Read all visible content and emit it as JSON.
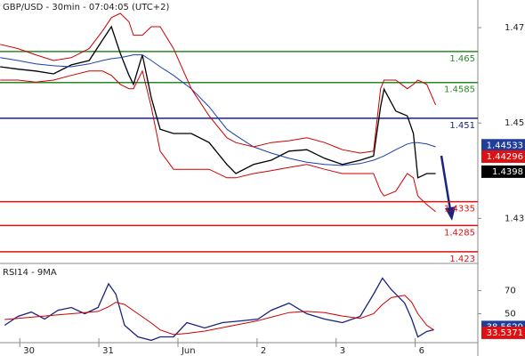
{
  "chart_data": [
    {
      "type": "line",
      "title": "GBP/USD - 30min - 07:04:05 (UTC+2)",
      "x": [
        -11.9,
        -1.1,
        9.7,
        20.5,
        31.3,
        42.1,
        50.2,
        55.6,
        61.0,
        66.3,
        69.0,
        74.4,
        79.8,
        85.2,
        93.3,
        104.1,
        114.9,
        125.7,
        131.1,
        141.9,
        152.6,
        163.4,
        174.2,
        185.0,
        195.8,
        206.6,
        214.7,
        219.0,
        221.1,
        228.2,
        235.2,
        238.9,
        241.6,
        247.0,
        252.4
      ],
      "series": [
        {
          "color": "#000000",
          "values": [
            1.4618,
            1.4613,
            1.4609,
            1.4603,
            1.4622,
            1.4631,
            1.4674,
            1.4702,
            1.4646,
            1.46,
            1.4581,
            1.4643,
            1.4553,
            1.4487,
            1.4478,
            1.4478,
            1.4459,
            1.4413,
            1.4394,
            1.4413,
            1.4422,
            1.4441,
            1.4444,
            1.4426,
            1.4413,
            1.4422,
            1.4431,
            1.4534,
            1.4571,
            1.4525,
            1.4515,
            1.4478,
            1.4385,
            1.4394,
            1.4394
          ]
        },
        {
          "color": "#1a3fa8",
          "values": [
            1.4637,
            1.4631,
            1.4624,
            1.462,
            1.4618,
            1.4624,
            1.4631,
            1.4635,
            1.4637,
            1.4641,
            1.4643,
            1.4643,
            1.4631,
            1.4618,
            1.46,
            1.4572,
            1.4534,
            1.4487,
            1.4474,
            1.445,
            1.4437,
            1.4426,
            1.4418,
            1.4413,
            1.4411,
            1.4415,
            1.4422,
            1.4428,
            1.4431,
            1.4444,
            1.4456,
            1.4459,
            1.4459,
            1.4456,
            1.445
          ]
        },
        {
          "color": "#cc0000",
          "values": [
            1.4665,
            1.4656,
            1.4643,
            1.4631,
            1.4637,
            1.4656,
            1.4693,
            1.4721,
            1.473,
            1.4712,
            1.4684,
            1.4684,
            1.4702,
            1.4702,
            1.4656,
            1.4572,
            1.4515,
            1.4469,
            1.4459,
            1.445,
            1.4459,
            1.4463,
            1.4469,
            1.4459,
            1.4444,
            1.4437,
            1.4441,
            1.4572,
            1.459,
            1.459,
            1.4572,
            1.4581,
            1.459,
            1.4581,
            1.4538
          ]
        },
        {
          "color": "#cc0000",
          "values": [
            1.459,
            1.459,
            1.4586,
            1.459,
            1.46,
            1.4609,
            1.4609,
            1.46,
            1.4581,
            1.4572,
            1.4572,
            1.4609,
            1.4534,
            1.4441,
            1.4403,
            1.4403,
            1.4403,
            1.4385,
            1.4385,
            1.4394,
            1.44,
            1.4407,
            1.4413,
            1.4403,
            1.4394,
            1.4394,
            1.4394,
            1.4357,
            1.4347,
            1.4357,
            1.4394,
            1.4385,
            1.4347,
            1.4329,
            1.4314
          ]
        }
      ],
      "levels": [
        {
          "value": 1.465,
          "color": "#2a8a2a"
        },
        {
          "value": 1.4585,
          "color": "#2a8a2a"
        },
        {
          "value": 1.451,
          "color": "#1a237e"
        },
        {
          "value": 1.4335,
          "color": "#dd1111"
        },
        {
          "value": 1.4285,
          "color": "#dd1111"
        },
        {
          "value": 1.423,
          "color": "#dd1111"
        }
      ],
      "tags": [
        {
          "value": 1.44533,
          "color": "#1f3d99"
        },
        {
          "value": 1.44296,
          "color": "#dd1111"
        },
        {
          "value": 1.4398,
          "color": "#000000"
        }
      ],
      "xlim": [
        -12,
        278
      ],
      "xticks": [
        {
          "value": 0,
          "label": "30"
        },
        {
          "value": 48,
          "label": "31"
        },
        {
          "value": 96,
          "label": "Jun"
        },
        {
          "value": 144,
          "label": "2"
        },
        {
          "value": 192,
          "label": "3"
        },
        {
          "value": 240,
          "label": "6"
        }
      ],
      "ylim": [
        1.4213,
        1.4758
      ],
      "yticks": [
        1.43,
        1.45,
        1.47
      ]
    },
    {
      "type": "line",
      "title": "RSI14 - 9MA",
      "x": [
        -9.2,
        -1.1,
        7.0,
        15.1,
        23.2,
        31.3,
        39.4,
        47.5,
        53.9,
        58.3,
        63.6,
        71.7,
        79.8,
        85.2,
        93.3,
        101.4,
        112.2,
        123.0,
        133.8,
        144.6,
        152.6,
        163.4,
        174.2,
        185.0,
        195.8,
        206.6,
        214.7,
        220.1,
        225.5,
        233.6,
        237.9,
        241.6,
        247.0,
        251.3
      ],
      "series": [
        {
          "color": "#1a237e",
          "values": [
            40,
            47.7,
            51.5,
            45.4,
            53,
            55.4,
            50,
            55.4,
            76,
            67,
            40,
            30,
            27,
            30,
            30,
            42.3,
            37.7,
            42.3,
            43.8,
            45.4,
            53,
            59.2,
            50,
            45.4,
            42.3,
            47.7,
            67,
            80.8,
            70.8,
            59.2,
            45.4,
            30,
            34.6,
            36.2
          ]
        },
        {
          "color": "#cc0000",
          "values": [
            45,
            46,
            47,
            48,
            49,
            50,
            51,
            52,
            56,
            60,
            58,
            50,
            42,
            36,
            32,
            33,
            35,
            38,
            41,
            44,
            47,
            51,
            52,
            51,
            48,
            46,
            50,
            58,
            64,
            66,
            60,
            50,
            40,
            36
          ]
        }
      ],
      "tags": [
        {
          "value": 38.5629,
          "color": "#1f3d99"
        },
        {
          "value": 33.5371,
          "color": "#dd1111"
        }
      ],
      "xlim": [
        -12,
        278
      ],
      "ylim": [
        25,
        92
      ],
      "yticks": [
        50,
        70
      ]
    }
  ]
}
